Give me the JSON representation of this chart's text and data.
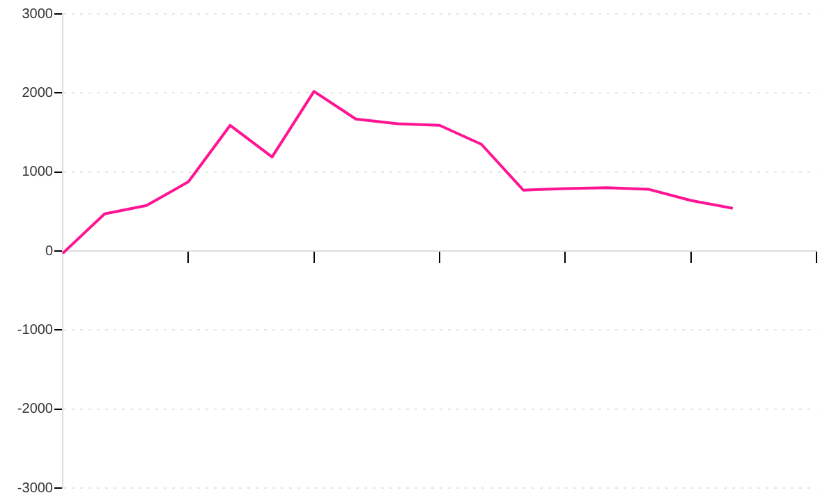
{
  "chart_data": {
    "type": "line",
    "categories": [
      null,
      null,
      null,
      null,
      null,
      null,
      null,
      null,
      null,
      null,
      null,
      null,
      null,
      null,
      null,
      null,
      null,
      null,
      null
    ],
    "series": [
      {
        "color": "#ff1493",
        "values": [
          -30,
          470,
          575,
          875,
          1590,
          1190,
          2020,
          1670,
          1610,
          1590,
          1350,
          770,
          790,
          800,
          780,
          640,
          540,
          null,
          null
        ]
      }
    ],
    "ylim": [
      -3000,
      3000
    ],
    "yticks": [
      -3000,
      -2000,
      -1000,
      0,
      1000,
      2000,
      3000
    ],
    "grid": "y",
    "legend": false,
    "marker": "none",
    "line_style": "solid",
    "tick_labels": "y"
  }
}
